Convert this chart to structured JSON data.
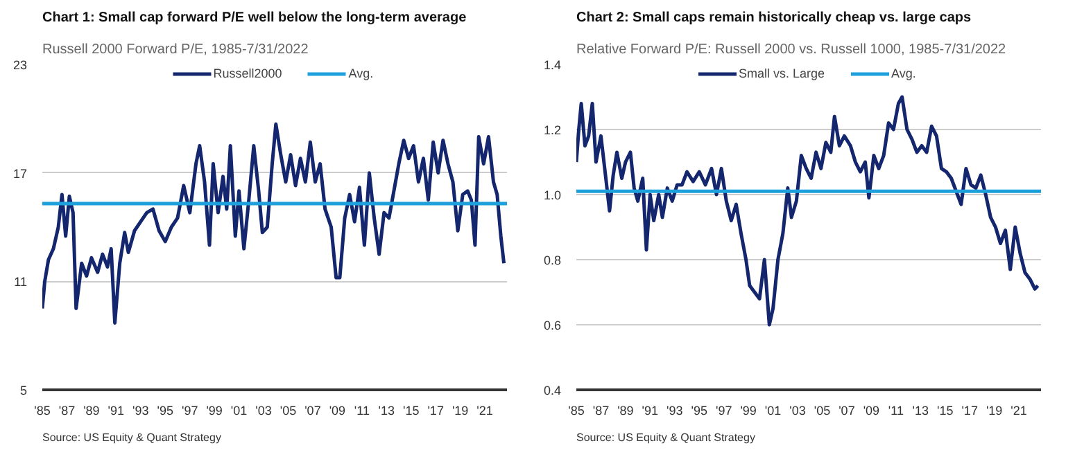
{
  "chart_data": [
    {
      "type": "line",
      "title": "Chart 1: Small cap forward P/E well below the long-term average",
      "subtitle": "Russell 2000 Forward P/E, 1985-7/31/2022",
      "annotations": [
        "Source: US Equity & Quant Strategy"
      ],
      "xlim": [
        1985,
        2022.8
      ],
      "ylim": [
        5,
        23
      ],
      "yticks": [
        5,
        11,
        17,
        23
      ],
      "xticks": [
        {
          "value": 1985,
          "label": "'85"
        },
        {
          "value": 1987,
          "label": "'87"
        },
        {
          "value": 1989,
          "label": "'89"
        },
        {
          "value": 1991,
          "label": "'91"
        },
        {
          "value": 1993,
          "label": "'93"
        },
        {
          "value": 1995,
          "label": "'95"
        },
        {
          "value": 1997,
          "label": "'97"
        },
        {
          "value": 1999,
          "label": "'99"
        },
        {
          "value": 2001,
          "label": "'01"
        },
        {
          "value": 2003,
          "label": "'03"
        },
        {
          "value": 2005,
          "label": "'05"
        },
        {
          "value": 2007,
          "label": "'07"
        },
        {
          "value": 2009,
          "label": "'09"
        },
        {
          "value": 2011,
          "label": "'11"
        },
        {
          "value": 2013,
          "label": "'13"
        },
        {
          "value": 2015,
          "label": "'15"
        },
        {
          "value": 2017,
          "label": "'17"
        },
        {
          "value": 2019,
          "label": "'19"
        },
        {
          "value": 2021,
          "label": "'21"
        }
      ],
      "grid": "y",
      "legend": "top",
      "marker": "none",
      "line_style": "solid",
      "series": [
        {
          "name": "Russell2000",
          "color": "#13266e",
          "x": [
            1985.0,
            1985.2,
            1985.5,
            1985.9,
            1986.3,
            1986.6,
            1986.9,
            1987.2,
            1987.5,
            1987.75,
            1988.2,
            1988.6,
            1989.0,
            1989.5,
            1989.9,
            1990.3,
            1990.6,
            1990.9,
            1991.3,
            1991.7,
            1992.0,
            1992.5,
            1993.0,
            1993.5,
            1994.0,
            1994.5,
            1995.0,
            1995.5,
            1996.0,
            1996.5,
            1997.0,
            1997.5,
            1997.8,
            1998.2,
            1998.6,
            1998.9,
            1999.3,
            1999.7,
            2000.0,
            2000.3,
            2000.7,
            2001.0,
            2001.4,
            2001.8,
            2002.2,
            2002.6,
            2002.9,
            2003.3,
            2003.7,
            2004.0,
            2004.4,
            2004.8,
            2005.2,
            2005.6,
            2006.0,
            2006.4,
            2006.8,
            2007.2,
            2007.6,
            2008.0,
            2008.5,
            2008.9,
            2009.2,
            2009.6,
            2010.0,
            2010.4,
            2010.8,
            2011.2,
            2011.6,
            2012.0,
            2012.4,
            2012.8,
            2013.2,
            2013.6,
            2014.0,
            2014.4,
            2014.8,
            2015.2,
            2015.6,
            2016.0,
            2016.4,
            2016.8,
            2017.2,
            2017.6,
            2018.0,
            2018.4,
            2018.8,
            2019.2,
            2019.6,
            2019.9,
            2020.2,
            2020.5,
            2020.9,
            2021.3,
            2021.7,
            2022.0,
            2022.3,
            2022.55
          ],
          "values": [
            9.5,
            11.0,
            12.2,
            12.8,
            14.0,
            15.8,
            13.5,
            15.7,
            14.8,
            9.5,
            12.0,
            11.3,
            12.3,
            11.5,
            12.5,
            11.8,
            12.8,
            8.7,
            12.0,
            13.7,
            12.6,
            13.8,
            14.3,
            14.8,
            15.0,
            13.8,
            13.2,
            14.0,
            14.5,
            16.3,
            14.8,
            17.5,
            18.5,
            16.5,
            13.0,
            17.5,
            14.8,
            16.8,
            15.0,
            18.5,
            13.5,
            16.0,
            12.8,
            15.5,
            18.5,
            16.0,
            13.7,
            14.0,
            17.5,
            19.7,
            18.0,
            16.5,
            18.0,
            16.3,
            17.8,
            16.5,
            18.7,
            16.5,
            17.5,
            15.0,
            14.0,
            11.2,
            11.2,
            14.5,
            15.8,
            14.3,
            16.2,
            13.0,
            17.0,
            14.5,
            12.5,
            14.8,
            14.5,
            16.0,
            17.5,
            18.8,
            17.8,
            18.5,
            16.5,
            17.8,
            15.5,
            18.7,
            17.0,
            18.8,
            17.5,
            16.5,
            13.8,
            15.8,
            16.0,
            15.5,
            13.0,
            19.0,
            17.5,
            19.0,
            16.5,
            15.8,
            13.5,
            12.0
          ]
        },
        {
          "name": "Avg.",
          "color": "#1ea0dc",
          "x": [
            1985,
            2022.8
          ],
          "values": [
            15.3,
            15.3
          ]
        }
      ]
    },
    {
      "type": "line",
      "title": "Chart 2: Small caps remain historically cheap vs. large caps",
      "subtitle": "Relative Forward P/E: Russell 2000 vs. Russell 1000, 1985-7/31/2022",
      "annotations": [
        "Source: US Equity & Quant Strategy"
      ],
      "xlim": [
        1985,
        2022.8
      ],
      "ylim": [
        0.4,
        1.4
      ],
      "yticks": [
        0.4,
        0.6,
        0.8,
        {
          "value": 1.0,
          "label": "1.0"
        },
        1.2,
        1.4
      ],
      "xticks": [
        {
          "value": 1985,
          "label": "'85"
        },
        {
          "value": 1987,
          "label": "'87"
        },
        {
          "value": 1989,
          "label": "'89"
        },
        {
          "value": 1991,
          "label": "'91"
        },
        {
          "value": 1993,
          "label": "'93"
        },
        {
          "value": 1995,
          "label": "'95"
        },
        {
          "value": 1997,
          "label": "'97"
        },
        {
          "value": 1999,
          "label": "'99"
        },
        {
          "value": 2001,
          "label": "'01"
        },
        {
          "value": 2003,
          "label": "'03"
        },
        {
          "value": 2005,
          "label": "'05"
        },
        {
          "value": 2007,
          "label": "'07"
        },
        {
          "value": 2009,
          "label": "'09"
        },
        {
          "value": 2011,
          "label": "'11"
        },
        {
          "value": 2013,
          "label": "'13"
        },
        {
          "value": 2015,
          "label": "'15"
        },
        {
          "value": 2017,
          "label": "'17"
        },
        {
          "value": 2019,
          "label": "'19"
        },
        {
          "value": 2021,
          "label": "'21"
        }
      ],
      "grid": "y",
      "legend": "top",
      "marker": "none",
      "line_style": "solid",
      "series": [
        {
          "name": "Small vs. Large",
          "color": "#13266e",
          "x": [
            1985.0,
            1985.2,
            1985.4,
            1985.7,
            1986.0,
            1986.3,
            1986.6,
            1987.0,
            1987.4,
            1987.7,
            1988.0,
            1988.3,
            1988.7,
            1989.0,
            1989.4,
            1989.7,
            1990.0,
            1990.4,
            1990.7,
            1991.0,
            1991.3,
            1991.7,
            1992.0,
            1992.4,
            1992.8,
            1993.2,
            1993.6,
            1994.0,
            1994.5,
            1995.0,
            1995.5,
            1996.0,
            1996.4,
            1996.8,
            1997.2,
            1997.6,
            1998.0,
            1998.4,
            1998.8,
            1999.1,
            1999.5,
            1999.9,
            2000.3,
            2000.7,
            2001.0,
            2001.4,
            2001.8,
            2002.2,
            2002.5,
            2002.9,
            2003.3,
            2003.7,
            2004.1,
            2004.5,
            2004.9,
            2005.3,
            2005.7,
            2006.0,
            2006.4,
            2006.8,
            2007.3,
            2007.7,
            2008.1,
            2008.5,
            2008.8,
            2009.2,
            2009.6,
            2010.0,
            2010.4,
            2010.8,
            2011.2,
            2011.5,
            2011.9,
            2012.3,
            2012.7,
            2013.1,
            2013.5,
            2013.9,
            2014.3,
            2014.7,
            2015.1,
            2015.5,
            2015.9,
            2016.3,
            2016.7,
            2017.1,
            2017.5,
            2017.9,
            2018.3,
            2018.7,
            2019.1,
            2019.5,
            2019.9,
            2020.3,
            2020.7,
            2021.1,
            2021.5,
            2021.9,
            2022.3,
            2022.55
          ],
          "values": [
            1.1,
            1.2,
            1.28,
            1.15,
            1.18,
            1.28,
            1.1,
            1.18,
            1.05,
            0.95,
            1.06,
            1.13,
            1.05,
            1.1,
            1.13,
            1.02,
            0.98,
            1.05,
            0.83,
            1.0,
            0.92,
            1.0,
            0.93,
            1.02,
            0.98,
            1.03,
            1.03,
            1.07,
            1.04,
            1.07,
            1.03,
            1.08,
            1.0,
            1.08,
            0.98,
            0.92,
            0.97,
            0.88,
            0.8,
            0.72,
            0.7,
            0.68,
            0.8,
            0.6,
            0.65,
            0.8,
            0.88,
            1.02,
            0.93,
            0.98,
            1.12,
            1.08,
            1.05,
            1.13,
            1.08,
            1.16,
            1.13,
            1.24,
            1.15,
            1.18,
            1.15,
            1.1,
            1.07,
            1.1,
            0.99,
            1.12,
            1.08,
            1.12,
            1.22,
            1.2,
            1.28,
            1.3,
            1.2,
            1.17,
            1.13,
            1.15,
            1.13,
            1.21,
            1.18,
            1.08,
            1.07,
            1.05,
            1.01,
            0.97,
            1.08,
            1.03,
            1.02,
            1.06,
            1.0,
            0.93,
            0.9,
            0.85,
            0.89,
            0.77,
            0.9,
            0.82,
            0.76,
            0.74,
            0.71,
            0.72
          ]
        },
        {
          "name": "Avg.",
          "color": "#1ea0dc",
          "x": [
            1985,
            2022.8
          ],
          "values": [
            1.01,
            1.01
          ]
        }
      ]
    }
  ]
}
